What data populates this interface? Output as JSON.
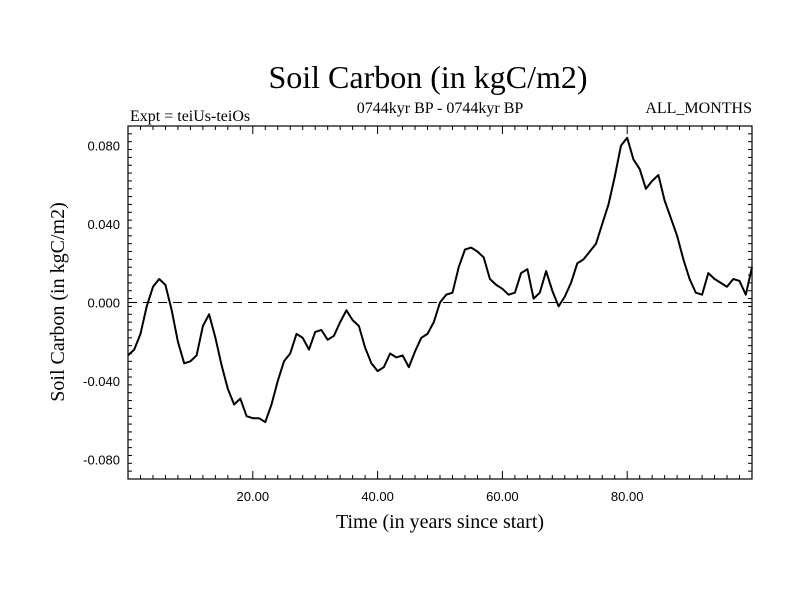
{
  "chart_data": {
    "type": "line",
    "title": "Soil Carbon (in kgC/m2)",
    "subtitle_left": "Expt = teiUs-teiOs",
    "subtitle_center": "0744kyr BP - 0744kyr BP",
    "subtitle_right": "ALL_MONTHS",
    "xlabel": "Time (in years since start)",
    "ylabel": "Soil Carbon (in kgC/m2)",
    "xlim": [
      0,
      100
    ],
    "ylim": [
      -0.09,
      0.09
    ],
    "x_ticks": [
      20,
      40,
      60,
      80
    ],
    "x_tick_labels": [
      "20.00",
      "40.00",
      "60.00",
      "80.00"
    ],
    "y_ticks": [
      0.08,
      0.04,
      0.0,
      -0.04,
      -0.08
    ],
    "y_tick_labels": [
      "0.080",
      "0.040",
      "0.000",
      "-0.040",
      "-0.080"
    ],
    "reference_line": 0.0,
    "grid": false,
    "line_color": "#000000",
    "series": [
      {
        "x": [
          0,
          1,
          2,
          3,
          4,
          5,
          6,
          7,
          8,
          9,
          10,
          11,
          12,
          13,
          14,
          15,
          16,
          17,
          18,
          19,
          20,
          21,
          22,
          23,
          24,
          25,
          26,
          27,
          28,
          29,
          30,
          31,
          32,
          33,
          34,
          35,
          36,
          37,
          38,
          39,
          40,
          41,
          42,
          43,
          44,
          45,
          46,
          47,
          48,
          49,
          50,
          51,
          52,
          53,
          54,
          55,
          56,
          57,
          58,
          59,
          60,
          61,
          62,
          63,
          64,
          65,
          66,
          67,
          68,
          69,
          70,
          71,
          72,
          73,
          74,
          75,
          76,
          77,
          78,
          79,
          80,
          81,
          82,
          83,
          84,
          85,
          86,
          87,
          88,
          89,
          90,
          91,
          92,
          93,
          94,
          95,
          96,
          97,
          98,
          99,
          100
        ],
        "y": [
          -0.027,
          -0.024,
          -0.016,
          -0.002,
          0.008,
          0.012,
          0.009,
          -0.004,
          -0.02,
          -0.031,
          -0.03,
          -0.027,
          -0.012,
          -0.006,
          -0.018,
          -0.032,
          -0.044,
          -0.052,
          -0.049,
          -0.058,
          -0.059,
          -0.059,
          -0.061,
          -0.052,
          -0.04,
          -0.03,
          -0.026,
          -0.016,
          -0.018,
          -0.024,
          -0.015,
          -0.014,
          -0.019,
          -0.017,
          -0.01,
          -0.004,
          -0.009,
          -0.012,
          -0.023,
          -0.031,
          -0.035,
          -0.033,
          -0.026,
          -0.028,
          -0.027,
          -0.033,
          -0.025,
          -0.018,
          -0.016,
          -0.01,
          0.0,
          0.004,
          0.005,
          0.018,
          0.027,
          0.028,
          0.026,
          0.023,
          0.012,
          0.009,
          0.007,
          0.004,
          0.005,
          0.015,
          0.017,
          0.002,
          0.005,
          0.016,
          0.006,
          -0.002,
          0.003,
          0.01,
          0.02,
          0.022,
          0.026,
          0.03,
          0.04,
          0.05,
          0.064,
          0.08,
          0.084,
          0.073,
          0.068,
          0.058,
          0.062,
          0.065,
          0.052,
          0.043,
          0.034,
          0.022,
          0.012,
          0.005,
          0.004,
          0.015,
          0.012,
          0.01,
          0.008,
          0.012,
          0.011,
          0.004,
          0.018
        ]
      }
    ]
  }
}
